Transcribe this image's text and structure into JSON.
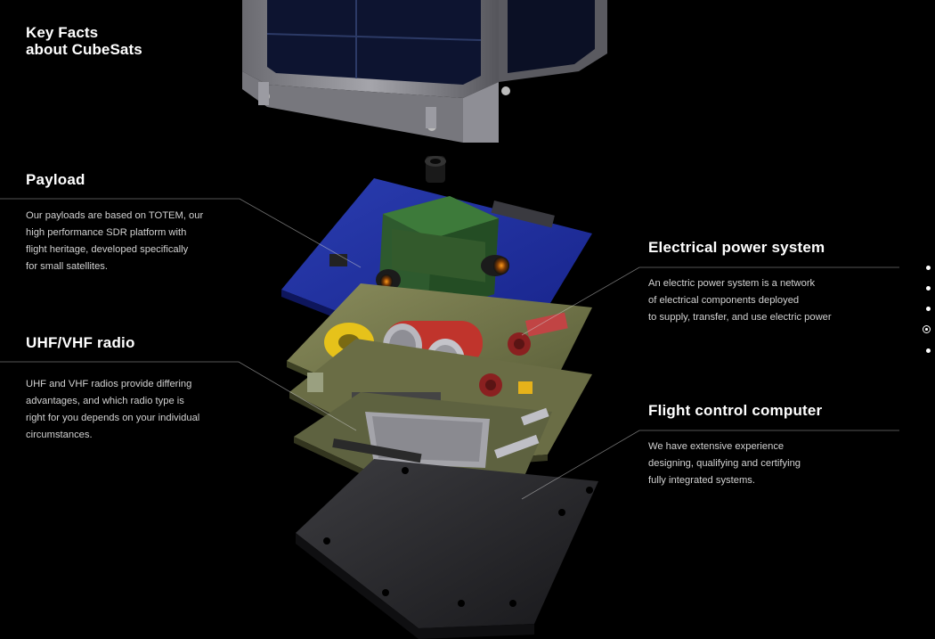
{
  "page": {
    "title_line1": "Key Facts",
    "title_line2": "about CubeSats"
  },
  "sections": {
    "payload": {
      "heading": "Payload",
      "lines": [
        "Our payloads are based on TOTEM, our",
        "high performance SDR platform with",
        "flight heritage, developed specifically",
        "for small satellites."
      ]
    },
    "radio": {
      "heading": "UHF/VHF radio",
      "lines": [
        "UHF and VHF radios provide differing",
        "advantages, and which radio type is",
        "right for you depends on your individual",
        "circumstances."
      ]
    },
    "power": {
      "heading": "Electrical power system",
      "lines": [
        "An electric power system is a network",
        "of electrical components deployed",
        "to supply, transfer, and use electric power"
      ]
    },
    "computer": {
      "heading": "Flight control computer",
      "lines": [
        "We have extensive experience",
        "designing, qualifying and certifying",
        "fully integrated systems."
      ]
    }
  },
  "navigation": {
    "dot_count": 5,
    "active_index": 3
  },
  "colors": {
    "background": "#000000",
    "text": "#ffffff",
    "body_text": "#d2d2d2",
    "payload_board": "#1f2f9a",
    "pcb_green": "#6f7548",
    "battery_red": "#c0342c",
    "toroid_yellow": "#e6c21a",
    "chassis_grey": "#4a4a4e"
  }
}
